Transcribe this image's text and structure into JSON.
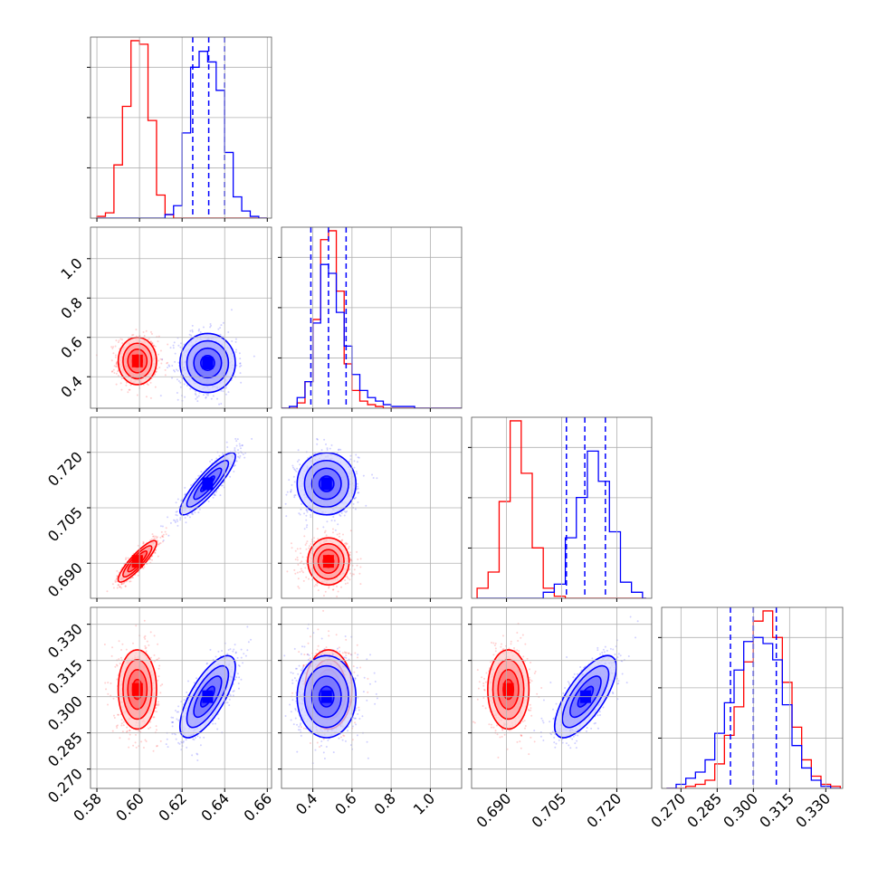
{
  "chart_data": {
    "type": "corner",
    "params": [
      {
        "key": "p0",
        "range": [
          0.577,
          0.662
        ],
        "ticks": [
          "0.58",
          "0.60",
          "0.62",
          "0.64",
          "0.66"
        ]
      },
      {
        "key": "p1",
        "range": [
          0.24,
          1.16
        ],
        "ticks": [
          "0.4",
          "0.6",
          "0.8",
          "1.0"
        ]
      },
      {
        "key": "p2",
        "range": [
          0.6805,
          0.7295
        ],
        "ticks": [
          "0.690",
          "0.705",
          "0.720"
        ]
      },
      {
        "key": "p3",
        "range": [
          0.262,
          0.337
        ],
        "ticks": [
          "0.270",
          "0.285",
          "0.300",
          "0.315",
          "0.330"
        ]
      }
    ],
    "series": [
      {
        "color": "#ff0000",
        "mean": [
          0.599,
          0.48,
          0.6905,
          0.303
        ],
        "sd": [
          0.0045,
          0.06,
          0.0028,
          0.0082
        ]
      },
      {
        "color": "#0000ff",
        "mean": [
          0.632,
          0.47,
          0.7115,
          0.3
        ],
        "sd": [
          0.0065,
          0.075,
          0.0042,
          0.0085
        ]
      }
    ],
    "histograms": [
      {
        "edges": [
          0.58,
          0.584,
          0.588,
          0.592,
          0.596,
          0.6,
          0.604,
          0.608,
          0.612,
          0.616,
          0.62,
          0.624,
          0.628,
          0.632,
          0.636,
          0.64,
          0.644,
          0.648,
          0.652,
          0.656,
          0.66
        ],
        "red": [
          0.01,
          0.03,
          0.3,
          0.63,
          1.0,
          0.98,
          0.55,
          0.13,
          0.02,
          0.0,
          0.0,
          0.0,
          0.0,
          0.0,
          0.0,
          0.0,
          0.0,
          0.0,
          0.0,
          0.0
        ],
        "blue": [
          0.0,
          0.0,
          0.0,
          0.0,
          0.0,
          0.0,
          0.0,
          0.0,
          0.02,
          0.07,
          0.48,
          0.85,
          0.94,
          0.88,
          0.72,
          0.37,
          0.12,
          0.04,
          0.01,
          0.0
        ],
        "blue_quantiles": [
          0.625,
          0.6325,
          0.64
        ]
      },
      {
        "edges": [
          0.24,
          0.28,
          0.32,
          0.36,
          0.4,
          0.44,
          0.48,
          0.52,
          0.56,
          0.6,
          0.64,
          0.68,
          0.72,
          0.76,
          0.8,
          0.84,
          0.88,
          0.92,
          0.96,
          1.0,
          1.04,
          1.08,
          1.12,
          1.16
        ],
        "red": [
          0.0,
          0.0,
          0.03,
          0.15,
          0.5,
          0.95,
          1.0,
          0.66,
          0.25,
          0.1,
          0.04,
          0.02,
          0.01,
          0.0,
          0.0,
          0.0,
          0.0,
          0.0,
          0.0,
          0.0,
          0.0,
          0.0,
          0.0
        ],
        "blue": [
          0.0,
          0.01,
          0.06,
          0.15,
          0.48,
          0.81,
          0.76,
          0.54,
          0.35,
          0.19,
          0.1,
          0.06,
          0.04,
          0.02,
          0.01,
          0.01,
          0.01,
          0.0,
          0.0,
          0.0,
          0.0,
          0.0,
          0.0
        ],
        "blue_quantiles": [
          0.39,
          0.48,
          0.57
        ]
      },
      {
        "edges": [
          0.682,
          0.685,
          0.688,
          0.691,
          0.694,
          0.697,
          0.7,
          0.703,
          0.706,
          0.709,
          0.712,
          0.715,
          0.718,
          0.721,
          0.724,
          0.727,
          0.728
        ],
        "red": [
          0.05,
          0.13,
          0.48,
          0.88,
          0.62,
          0.25,
          0.05,
          0.01,
          0.0,
          0.0,
          0.0,
          0.0,
          0.0,
          0.0,
          0.0,
          0.0
        ],
        "blue": [
          0.0,
          0.0,
          0.0,
          0.0,
          0.0,
          0.0,
          0.03,
          0.07,
          0.3,
          0.5,
          0.73,
          0.58,
          0.33,
          0.08,
          0.03,
          0.0
        ],
        "blue_quantiles": [
          0.7063,
          0.7113,
          0.7169
        ]
      },
      {
        "edges": [
          0.264,
          0.268,
          0.272,
          0.276,
          0.28,
          0.284,
          0.288,
          0.292,
          0.296,
          0.3,
          0.304,
          0.308,
          0.312,
          0.316,
          0.32,
          0.324,
          0.328,
          0.332,
          0.336
        ],
        "red": [
          0.0,
          0.0,
          0.01,
          0.02,
          0.04,
          0.12,
          0.26,
          0.4,
          0.62,
          0.82,
          0.87,
          0.74,
          0.52,
          0.3,
          0.14,
          0.06,
          0.02,
          0.01
        ],
        "blue": [
          0.0,
          0.02,
          0.05,
          0.08,
          0.14,
          0.27,
          0.42,
          0.58,
          0.72,
          0.74,
          0.71,
          0.63,
          0.41,
          0.21,
          0.1,
          0.04,
          0.01,
          0.0
        ],
        "blue_quantiles": [
          0.2905,
          0.3,
          0.3095
        ]
      }
    ],
    "contour_levels": [
      0.5,
      1.0,
      1.5,
      2.0
    ],
    "grid": true
  }
}
